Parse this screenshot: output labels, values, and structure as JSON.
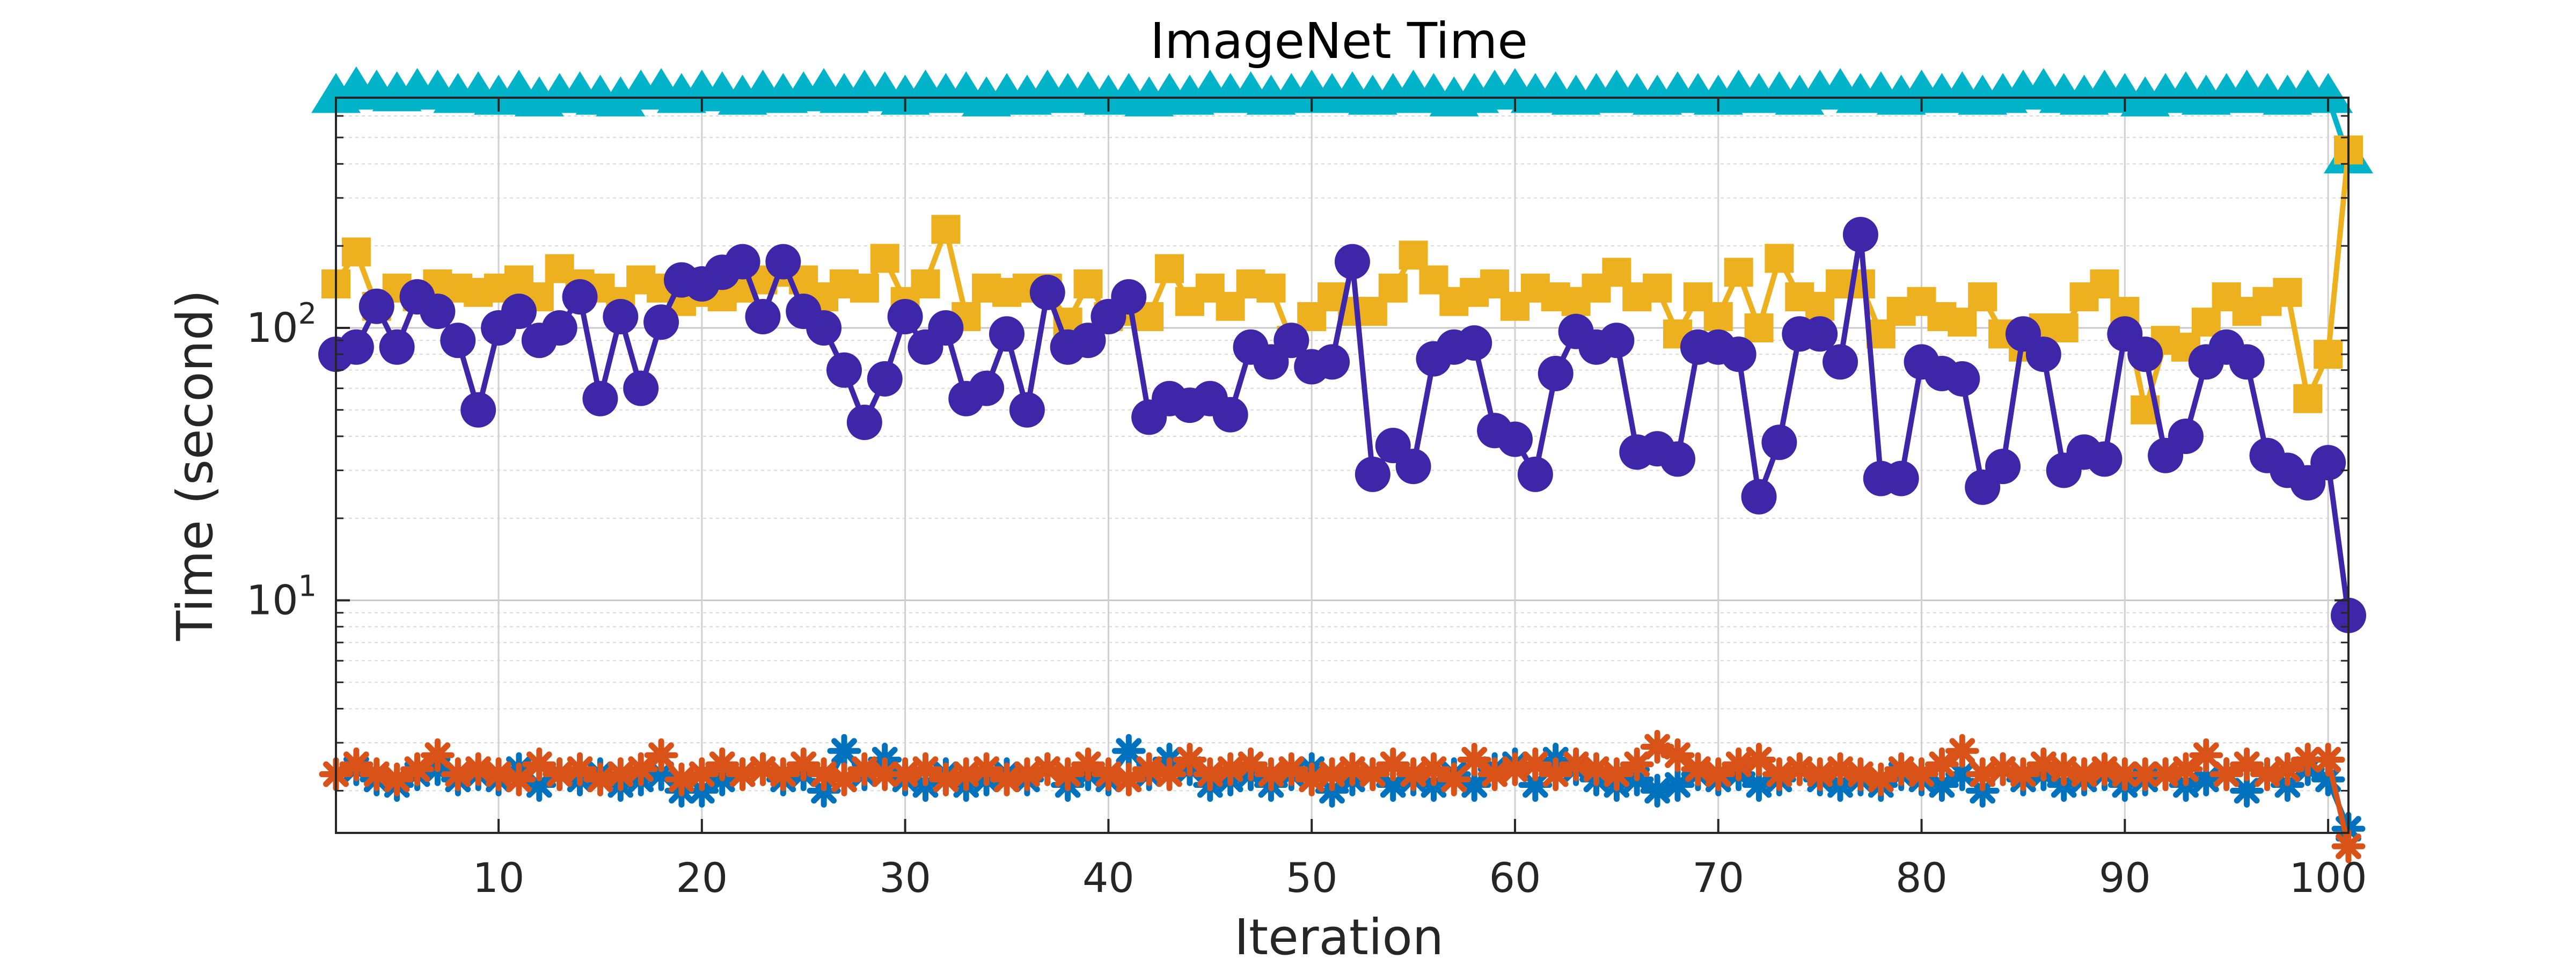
{
  "chart_data": {
    "type": "line",
    "title": "ImageNet Time",
    "xlabel": "Iteration",
    "ylabel": "Time (second)",
    "yscale": "log",
    "xlim": [
      2,
      101
    ],
    "ylim": [
      1.4,
      700
    ],
    "grid": true,
    "x_ticks": [
      10,
      20,
      30,
      40,
      50,
      60,
      70,
      80,
      90,
      100
    ],
    "x_tick_labels": [
      "10",
      "20",
      "30",
      "40",
      "50",
      "60",
      "70",
      "80",
      "90",
      "100"
    ],
    "y_ticks": [
      {
        "value": 100,
        "base": "10",
        "exp": "2"
      },
      {
        "value": 10,
        "base": "10",
        "exp": "1"
      }
    ],
    "x": [
      2,
      3,
      4,
      5,
      6,
      7,
      8,
      9,
      10,
      11,
      12,
      13,
      14,
      15,
      16,
      17,
      18,
      19,
      20,
      21,
      22,
      23,
      24,
      25,
      26,
      27,
      28,
      29,
      30,
      31,
      32,
      33,
      34,
      35,
      36,
      37,
      38,
      39,
      40,
      41,
      42,
      43,
      44,
      45,
      46,
      47,
      48,
      49,
      50,
      51,
      52,
      53,
      54,
      55,
      56,
      57,
      58,
      59,
      60,
      61,
      62,
      63,
      64,
      65,
      66,
      67,
      68,
      69,
      70,
      71,
      72,
      73,
      74,
      75,
      76,
      77,
      78,
      79,
      80,
      81,
      82,
      83,
      84,
      85,
      86,
      87,
      88,
      89,
      90,
      91,
      92,
      93,
      94,
      95,
      96,
      97,
      98,
      99,
      100,
      101
    ],
    "series": [
      {
        "name": "teal-triangle",
        "color": "#00b3c8",
        "marker": "triangle",
        "values": [
          700,
          740,
          720,
          710,
          730,
          720,
          700,
          710,
          690,
          720,
          680,
          700,
          710,
          690,
          680,
          720,
          730,
          700,
          720,
          710,
          690,
          720,
          700,
          710,
          730,
          700,
          720,
          710,
          690,
          720,
          700,
          710,
          680,
          700,
          690,
          720,
          700,
          710,
          690,
          700,
          680,
          700,
          690,
          720,
          700,
          710,
          690,
          700,
          720,
          700,
          710,
          690,
          700,
          720,
          700,
          680,
          700,
          720,
          730,
          700,
          710,
          690,
          700,
          720,
          700,
          690,
          710,
          700,
          690,
          720,
          700,
          710,
          690,
          720,
          730,
          700,
          710,
          690,
          720,
          700,
          710,
          690,
          700,
          720,
          730,
          700,
          690,
          720,
          700,
          680,
          700,
          710,
          690,
          700,
          720,
          700,
          690,
          720,
          700,
          420
        ]
      },
      {
        "name": "yellow-square",
        "color": "#edb120",
        "marker": "square",
        "values": [
          145,
          190,
          120,
          140,
          130,
          145,
          140,
          135,
          140,
          150,
          130,
          165,
          145,
          140,
          125,
          150,
          140,
          125,
          135,
          130,
          140,
          150,
          160,
          150,
          130,
          145,
          140,
          180,
          125,
          145,
          230,
          110,
          140,
          135,
          140,
          140,
          105,
          145,
          110,
          115,
          110,
          165,
          125,
          140,
          120,
          145,
          140,
          90,
          110,
          130,
          115,
          115,
          140,
          185,
          150,
          125,
          135,
          145,
          120,
          140,
          130,
          125,
          140,
          160,
          130,
          140,
          95,
          130,
          110,
          160,
          100,
          180,
          130,
          120,
          145,
          145,
          95,
          115,
          125,
          110,
          105,
          130,
          95,
          85,
          100,
          100,
          130,
          145,
          115,
          50,
          90,
          85,
          105,
          130,
          115,
          125,
          135,
          55,
          80,
          450
        ]
      },
      {
        "name": "indigo-circle",
        "color": "#3d26a8",
        "marker": "circle",
        "values": [
          80,
          85,
          120,
          85,
          130,
          115,
          90,
          50,
          100,
          115,
          90,
          100,
          130,
          55,
          110,
          60,
          105,
          150,
          145,
          160,
          175,
          110,
          175,
          115,
          100,
          70,
          45,
          65,
          110,
          85,
          100,
          55,
          60,
          95,
          50,
          135,
          85,
          90,
          110,
          130,
          47,
          55,
          52,
          55,
          48,
          85,
          75,
          90,
          72,
          75,
          175,
          29,
          37,
          31,
          77,
          85,
          88,
          42,
          39,
          29,
          68,
          97,
          85,
          90,
          35,
          36,
          33,
          85,
          85,
          80,
          24,
          38,
          95,
          95,
          75,
          220,
          28,
          28,
          75,
          68,
          65,
          26,
          31,
          95,
          80,
          30,
          35,
          33,
          95,
          80,
          34,
          40,
          75,
          85,
          75,
          34,
          30,
          27,
          32,
          8.8
        ]
      },
      {
        "name": "blue-asterisk",
        "color": "#0072bd",
        "marker": "asterisk",
        "values": [
          2.3,
          2.4,
          2.2,
          2.1,
          2.3,
          2.4,
          2.2,
          2.3,
          2.2,
          2.4,
          2.1,
          2.3,
          2.2,
          2.3,
          2.1,
          2.2,
          2.3,
          2.0,
          2.0,
          2.2,
          2.3,
          2.4,
          2.2,
          2.3,
          2.0,
          2.8,
          2.3,
          2.6,
          2.2,
          2.1,
          2.3,
          2.1,
          2.2,
          2.3,
          2.2,
          2.4,
          2.1,
          2.3,
          2.2,
          2.8,
          2.3,
          2.6,
          2.4,
          2.1,
          2.2,
          2.3,
          2.1,
          2.3,
          2.4,
          2.0,
          2.2,
          2.3,
          2.1,
          2.2,
          2.1,
          2.3,
          2.1,
          2.4,
          2.5,
          2.1,
          2.6,
          2.4,
          2.2,
          2.1,
          2.2,
          2.0,
          2.1,
          2.3,
          2.2,
          2.3,
          2.1,
          2.2,
          2.4,
          2.2,
          2.1,
          2.2,
          2.1,
          2.3,
          2.2,
          2.1,
          2.3,
          2.0,
          2.4,
          2.2,
          2.3,
          2.1,
          2.2,
          2.3,
          2.1,
          2.2,
          2.3,
          2.1,
          2.2,
          2.3,
          2.0,
          2.3,
          2.1,
          2.4,
          2.2,
          1.45
        ]
      },
      {
        "name": "orange-asterisk",
        "color": "#d95319",
        "marker": "asterisk",
        "values": [
          2.3,
          2.5,
          2.3,
          2.2,
          2.4,
          2.7,
          2.3,
          2.4,
          2.3,
          2.2,
          2.5,
          2.3,
          2.4,
          2.2,
          2.3,
          2.4,
          2.7,
          2.2,
          2.3,
          2.5,
          2.3,
          2.4,
          2.3,
          2.5,
          2.3,
          2.2,
          2.4,
          2.3,
          2.3,
          2.4,
          2.2,
          2.3,
          2.4,
          2.2,
          2.3,
          2.4,
          2.3,
          2.5,
          2.3,
          2.2,
          2.4,
          2.3,
          2.6,
          2.3,
          2.4,
          2.5,
          2.3,
          2.4,
          2.2,
          2.3,
          2.4,
          2.3,
          2.5,
          2.3,
          2.4,
          2.2,
          2.6,
          2.3,
          2.4,
          2.5,
          2.3,
          2.5,
          2.4,
          2.3,
          2.5,
          2.9,
          2.7,
          2.4,
          2.3,
          2.5,
          2.6,
          2.3,
          2.4,
          2.3,
          2.4,
          2.3,
          2.2,
          2.4,
          2.3,
          2.5,
          2.8,
          2.3,
          2.4,
          2.3,
          2.5,
          2.4,
          2.3,
          2.4,
          2.3,
          2.3,
          2.3,
          2.4,
          2.7,
          2.3,
          2.5,
          2.3,
          2.4,
          2.6,
          2.6,
          1.25
        ]
      }
    ]
  }
}
